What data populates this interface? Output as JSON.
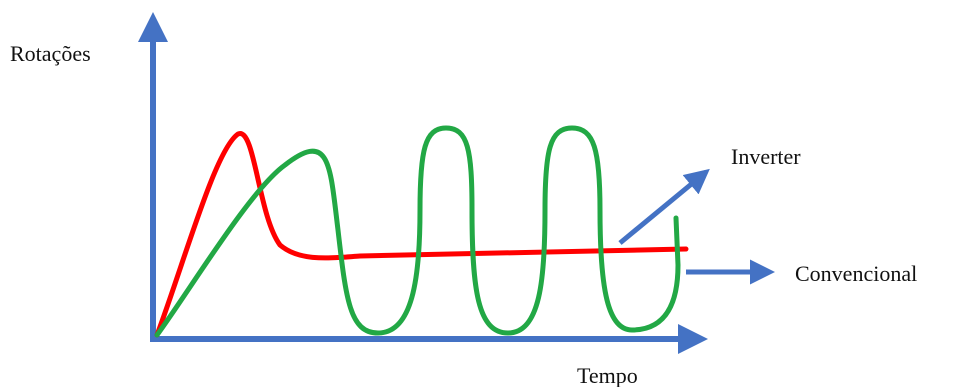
{
  "labels": {
    "y_axis": "Rotações",
    "x_axis": "Tempo",
    "inverter": "Inverter",
    "convencional": "Convencional"
  },
  "colors": {
    "axis": "#4472C4",
    "inverter_curve": "#FF0000",
    "convencional_curve": "#22A845",
    "background": "#FFFFFF"
  },
  "curves": [
    {
      "name": "inverter",
      "color_key": "inverter_curve"
    },
    {
      "name": "convencional",
      "color_key": "convencional_curve"
    }
  ]
}
